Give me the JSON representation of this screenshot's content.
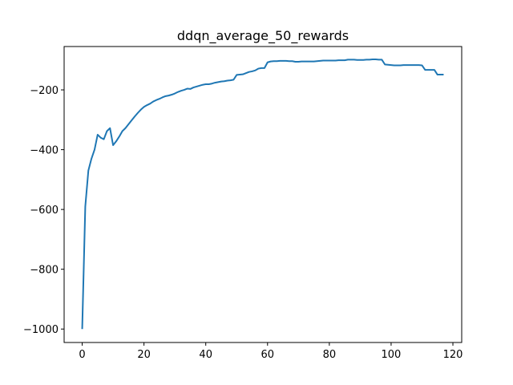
{
  "chart_data": {
    "type": "line",
    "title": "ddqn_average_50_rewards",
    "xlabel": "",
    "ylabel": "",
    "xlim": [
      -5.85,
      122.85
    ],
    "ylim": [
      -1045,
      -55
    ],
    "xticks": [
      0,
      20,
      40,
      60,
      80,
      100,
      120
    ],
    "yticks": [
      -1000,
      -800,
      -600,
      -400,
      -200
    ],
    "yticks_text": [
      "−1000",
      "−800",
      "−600",
      "−400",
      "−200"
    ],
    "grid": false,
    "color": "#1f77b4",
    "series": [
      {
        "x": [
          0,
          1,
          2,
          3,
          4,
          5,
          6,
          7,
          8,
          9,
          10,
          11,
          12,
          13,
          14,
          15,
          16,
          17,
          18,
          19,
          20,
          21,
          22,
          23,
          24,
          25,
          26,
          27,
          28,
          29,
          30,
          31,
          32,
          33,
          34,
          35,
          36,
          37,
          38,
          39,
          40,
          41,
          42,
          43,
          44,
          45,
          46,
          47,
          48,
          49,
          50,
          51,
          52,
          53,
          54,
          55,
          56,
          57,
          58,
          59,
          60,
          61,
          62,
          63,
          64,
          65,
          66,
          67,
          68,
          69,
          70,
          71,
          72,
          73,
          74,
          75,
          76,
          77,
          78,
          79,
          80,
          81,
          82,
          83,
          84,
          85,
          86,
          87,
          88,
          89,
          90,
          91,
          92,
          93,
          94,
          95,
          96,
          97,
          98,
          99,
          100,
          101,
          102,
          103,
          104,
          105,
          106,
          107,
          108,
          109,
          110,
          111,
          112,
          113,
          114,
          115,
          116,
          117
        ],
        "values": [
          -1000,
          -590,
          -470,
          -430,
          -400,
          -350,
          -360,
          -365,
          -338,
          -328,
          -385,
          -372,
          -356,
          -338,
          -328,
          -315,
          -302,
          -289,
          -277,
          -266,
          -257,
          -251,
          -246,
          -239,
          -234,
          -230,
          -225,
          -221,
          -219,
          -216,
          -212,
          -207,
          -203,
          -200,
          -196,
          -197,
          -192,
          -189,
          -186,
          -183,
          -181,
          -181,
          -179,
          -176,
          -174,
          -172,
          -171,
          -169,
          -168,
          -166,
          -150,
          -149,
          -148,
          -144,
          -140,
          -138,
          -135,
          -129,
          -127,
          -127,
          -108,
          -105,
          -104,
          -104,
          -103,
          -103,
          -103,
          -104,
          -104,
          -106,
          -106,
          -105,
          -105,
          -105,
          -105,
          -105,
          -104,
          -103,
          -102,
          -102,
          -102,
          -102,
          -102,
          -101,
          -101,
          -101,
          -99,
          -99,
          -99,
          -100,
          -100,
          -100,
          -99,
          -99,
          -98,
          -98,
          -99,
          -99,
          -115,
          -116,
          -117,
          -118,
          -118,
          -118,
          -117,
          -117,
          -117,
          -117,
          -117,
          -117,
          -118,
          -133,
          -133,
          -133,
          -133,
          -149,
          -149,
          -149
        ]
      }
    ]
  }
}
